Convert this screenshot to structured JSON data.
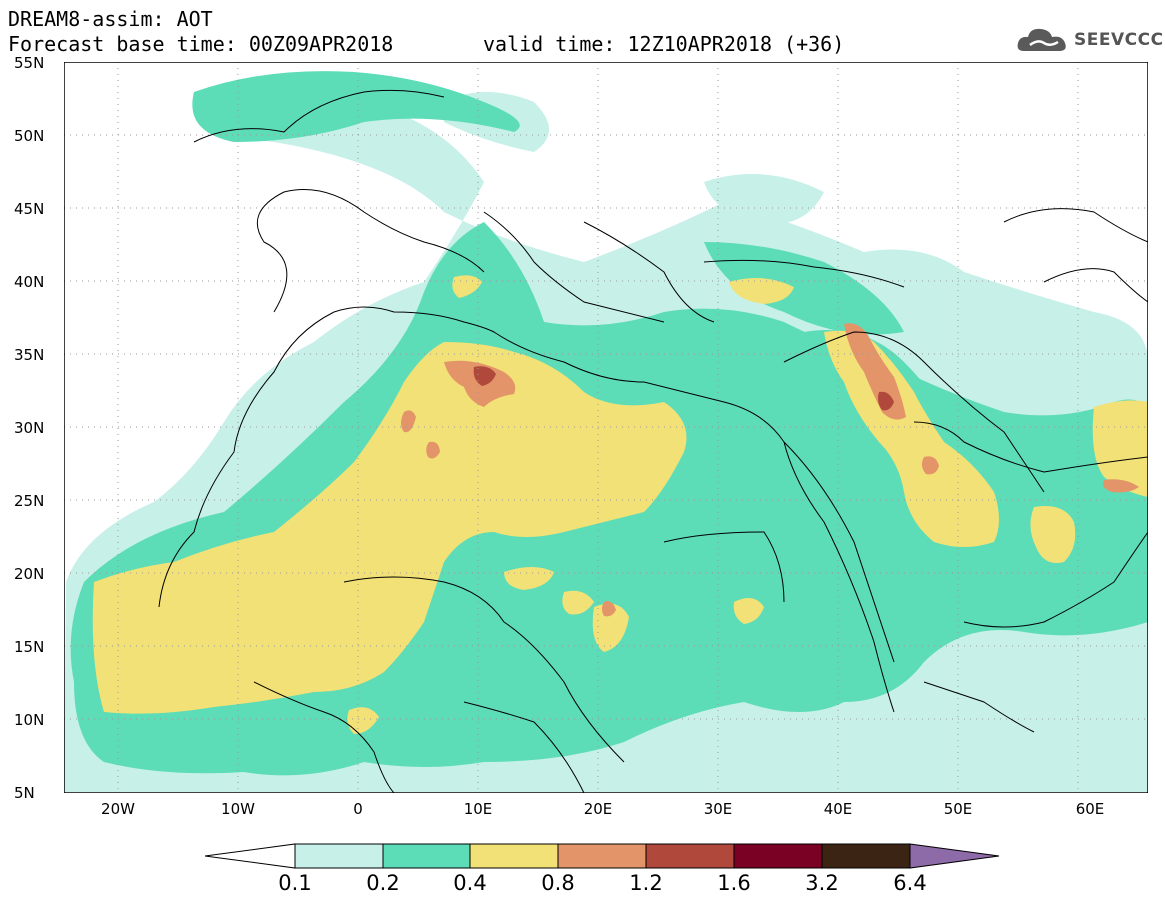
{
  "header": {
    "model_line": "DREAM8-assim: AOT",
    "base_time": "Forecast base time: 00Z09APR2018",
    "valid_time": "valid time: 12Z10APR2018 (+36)"
  },
  "logo": {
    "text": "SEEVCCC",
    "icon": "cloud-icon"
  },
  "map": {
    "lat_labels": [
      "55N",
      "50N",
      "45N",
      "40N",
      "35N",
      "30N",
      "25N",
      "20N",
      "15N",
      "10N",
      "5N"
    ],
    "lon_labels": [
      "20W",
      "10W",
      "0",
      "10E",
      "20E",
      "30E",
      "40E",
      "50E",
      "60E"
    ],
    "lat_range": [
      5,
      55
    ],
    "lon_range": [
      -25,
      65
    ],
    "grid": "dotted"
  },
  "colorbar": {
    "levels": [
      "0.1",
      "0.2",
      "0.4",
      "0.8",
      "1.2",
      "1.6",
      "3.2",
      "6.4"
    ],
    "colors": [
      "#ffffff",
      "#c6f0e8",
      "#5ddcb8",
      "#f2e176",
      "#e49469",
      "#b0493b",
      "#7a0024",
      "#3b2414",
      "#8d6aa8"
    ]
  }
}
